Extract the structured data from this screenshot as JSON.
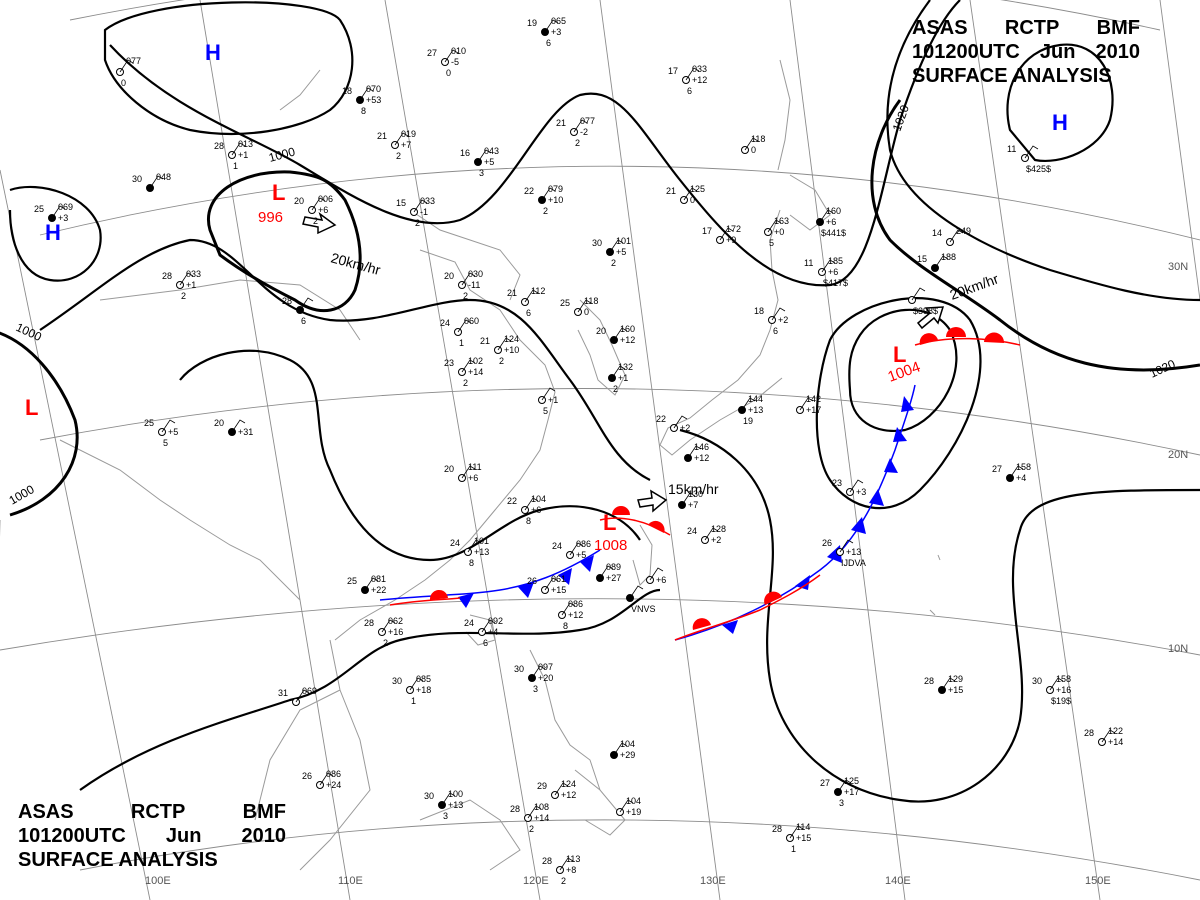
{
  "header": {
    "agency_line": [
      "ASAS",
      "RCTP",
      "BMF"
    ],
    "time_line": [
      "101200UTC",
      "Jun",
      "2010"
    ],
    "product": "SURFACE ANALYSIS"
  },
  "colors": {
    "isobar": "#000000",
    "grid": "#8c8c8c",
    "coast": "#9a9a9a",
    "low": "#ff0000",
    "high": "#0000ff",
    "warm_front": "#ff0000",
    "cold_front": "#0000ff"
  },
  "grid_labels": {
    "longitudes": [
      "100E",
      "110E",
      "120E",
      "130E",
      "140E",
      "150E"
    ],
    "latitudes": [
      "30N",
      "20N",
      "10N"
    ]
  },
  "isobar_labels": [
    "1000",
    "1000",
    "1000",
    "1000",
    "1020",
    "1020"
  ],
  "pressure_centers": [
    {
      "type": "H",
      "value": ""
    },
    {
      "type": "H",
      "value": ""
    },
    {
      "type": "H",
      "value": ""
    },
    {
      "type": "L",
      "value": "996"
    },
    {
      "type": "L",
      "value": ""
    },
    {
      "type": "L",
      "value": "1008"
    },
    {
      "type": "L",
      "value": "1004"
    }
  ],
  "motion_vectors": [
    "20km/hr",
    "15km/hr",
    "20km/hr"
  ],
  "stations": [
    {
      "t": "19",
      "p": "065",
      "l1": "+3",
      "l2": "6"
    },
    {
      "t": "27",
      "p": "010",
      "l1": "-5",
      "l2": "0"
    },
    {
      "t": "",
      "p": "077",
      "l1": "",
      "l2": "0"
    },
    {
      "t": "18",
      "p": "070",
      "l1": "+53",
      "l2": "8"
    },
    {
      "t": "21",
      "p": "019",
      "l1": "+7",
      "l2": "2"
    },
    {
      "t": "28",
      "p": "013",
      "l1": "+1",
      "l2": "1"
    },
    {
      "t": "16",
      "p": "043",
      "l1": "+5",
      "l2": "3"
    },
    {
      "t": "17",
      "p": "033",
      "l1": "+12",
      "l2": "6"
    },
    {
      "t": "21",
      "p": "077",
      "l1": "-2",
      "l2": "2"
    },
    {
      "t": "30",
      "p": "048",
      "l1": "",
      "l2": ""
    },
    {
      "t": "20",
      "p": "006",
      "l1": "+6",
      "l2": "2"
    },
    {
      "t": "15",
      "p": "033",
      "l1": "-1",
      "l2": "2"
    },
    {
      "t": "22",
      "p": "079",
      "l1": "+10",
      "l2": "2"
    },
    {
      "t": "21",
      "p": "125",
      "l1": "0",
      "l2": ""
    },
    {
      "t": "",
      "p": "118",
      "l1": "0",
      "l2": ""
    },
    {
      "t": "25",
      "p": "069",
      "l1": "+3",
      "l2": ""
    },
    {
      "t": "17",
      "p": "172",
      "l1": "+9",
      "l2": ""
    },
    {
      "t": "",
      "p": "163",
      "l1": "+0",
      "l2": "5"
    },
    {
      "t": "",
      "p": "160",
      "l1": "+6",
      "l2": "$441$"
    },
    {
      "t": "11",
      "p": "185",
      "l1": "+6",
      "l2": "$417$"
    },
    {
      "t": "14",
      "p": "249",
      "l1": "",
      "l2": ""
    },
    {
      "t": "15",
      "p": "188",
      "l1": "",
      "l2": ""
    },
    {
      "t": "",
      "p": "",
      "l1": "",
      "l2": "$398$"
    },
    {
      "t": "11",
      "p": "",
      "l1": "",
      "l2": "$425$"
    },
    {
      "t": "30",
      "p": "101",
      "l1": "+5",
      "l2": "2"
    },
    {
      "t": "20",
      "p": "030",
      "l1": "-11",
      "l2": "2"
    },
    {
      "t": "28",
      "p": "033",
      "l1": "+1",
      "l2": "2"
    },
    {
      "t": "28",
      "p": "",
      "l1": "",
      "l2": "6"
    },
    {
      "t": "21",
      "p": "112",
      "l1": "",
      "l2": "6"
    },
    {
      "t": "25",
      "p": "118",
      "l1": "0",
      "l2": ""
    },
    {
      "t": "20",
      "p": "160",
      "l1": "+12",
      "l2": ""
    },
    {
      "t": "24",
      "p": "060",
      "l1": "",
      "l2": "1"
    },
    {
      "t": "21",
      "p": "124",
      "l1": "+10",
      "l2": "2"
    },
    {
      "t": "",
      "p": "132",
      "l1": "+1",
      "l2": "2"
    },
    {
      "t": "23",
      "p": "102",
      "l1": "+14",
      "l2": "2"
    },
    {
      "t": "",
      "p": "",
      "l1": "+1",
      "l2": "5"
    },
    {
      "t": "20",
      "p": "",
      "l1": "+31",
      "l2": ""
    },
    {
      "t": "25",
      "p": "",
      "l1": "+5",
      "l2": "5"
    },
    {
      "t": "18",
      "p": "",
      "l1": "+2",
      "l2": "6"
    },
    {
      "t": "",
      "p": "144",
      "l1": "+13",
      "l2": "19"
    },
    {
      "t": "",
      "p": "142",
      "l1": "+17",
      "l2": ""
    },
    {
      "t": "22",
      "p": "",
      "l1": "+2",
      "l2": ""
    },
    {
      "t": "",
      "p": "146",
      "l1": "+12",
      "l2": ""
    },
    {
      "t": "20",
      "p": "111",
      "l1": "+6",
      "l2": ""
    },
    {
      "t": "22",
      "p": "104",
      "l1": "+6",
      "l2": "8"
    },
    {
      "t": "",
      "p": "130",
      "l1": "+7",
      "l2": ""
    },
    {
      "t": "24",
      "p": "128",
      "l1": "+2",
      "l2": ""
    },
    {
      "t": "23",
      "p": "",
      "l1": "+3",
      "l2": ""
    },
    {
      "t": "27",
      "p": "158",
      "l1": "+4",
      "l2": ""
    },
    {
      "t": "24",
      "p": "101",
      "l1": "+13",
      "l2": "8"
    },
    {
      "t": "24",
      "p": "086",
      "l1": "+5",
      "l2": ""
    },
    {
      "t": "",
      "p": "089",
      "l1": "+27",
      "l2": ""
    },
    {
      "t": "",
      "p": "",
      "l1": "+6",
      "l2": ""
    },
    {
      "t": "26",
      "p": "",
      "l1": "+13",
      "l2": "IJDVA"
    },
    {
      "t": "25",
      "p": "081",
      "l1": "+22",
      "l2": ""
    },
    {
      "t": "26",
      "p": "061",
      "l1": "+15",
      "l2": ""
    },
    {
      "t": "",
      "p": "086",
      "l1": "+12",
      "l2": "8"
    },
    {
      "t": "",
      "p": "",
      "l1": "",
      "l2": "VNVS"
    },
    {
      "t": "28",
      "p": "062",
      "l1": "+16",
      "l2": "2"
    },
    {
      "t": "24",
      "p": "092",
      "l1": "+4",
      "l2": "6"
    },
    {
      "t": "30",
      "p": "097",
      "l1": "+20",
      "l2": "3"
    },
    {
      "t": "30",
      "p": "085",
      "l1": "+18",
      "l2": "1"
    },
    {
      "t": "31",
      "p": "069",
      "l1": "",
      "l2": ""
    },
    {
      "t": "28",
      "p": "129",
      "l1": "+15",
      "l2": ""
    },
    {
      "t": "30",
      "p": "158",
      "l1": "+16",
      "l2": "$19$"
    },
    {
      "t": "28",
      "p": "122",
      "l1": "+14",
      "l2": ""
    },
    {
      "t": "",
      "p": "104",
      "l1": "+29",
      "l2": ""
    },
    {
      "t": "29",
      "p": "124",
      "l1": "+12",
      "l2": ""
    },
    {
      "t": "26",
      "p": "086",
      "l1": "+24",
      "l2": ""
    },
    {
      "t": "30",
      "p": "100",
      "l1": "+13",
      "l2": "3"
    },
    {
      "t": "28",
      "p": "108",
      "l1": "+14",
      "l2": "2"
    },
    {
      "t": "",
      "p": "104",
      "l1": "+19",
      "l2": ""
    },
    {
      "t": "27",
      "p": "125",
      "l1": "+17",
      "l2": "3"
    },
    {
      "t": "28",
      "p": "114",
      "l1": "+15",
      "l2": "1"
    },
    {
      "t": "28",
      "p": "113",
      "l1": "+8",
      "l2": "2"
    }
  ]
}
